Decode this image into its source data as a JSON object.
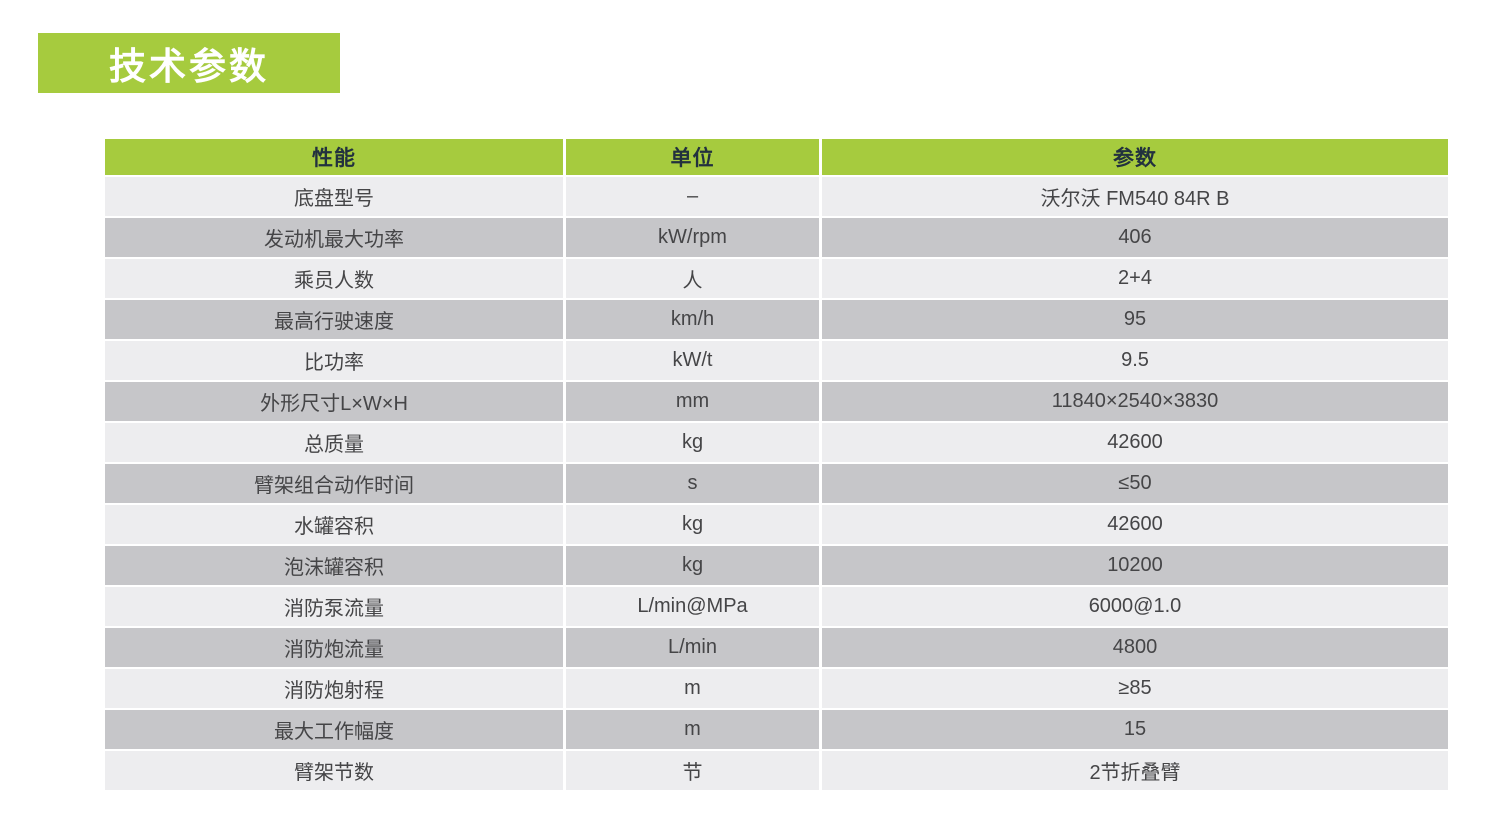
{
  "page": {
    "title": "技术参数"
  },
  "colors": {
    "accent_green": "#a6cb3e",
    "header_text": "#22313e",
    "row_light": "#ededef",
    "row_dark": "#c6c6c9",
    "cell_text": "#454547",
    "title_text": "#ffffff"
  },
  "table": {
    "headers": {
      "performance": "性能",
      "unit": "单位",
      "parameter": "参数"
    },
    "rows": [
      {
        "name": "底盘型号",
        "unit": "–",
        "value": "沃尔沃 FM540 84R B"
      },
      {
        "name": "发动机最大功率",
        "unit": "kW/rpm",
        "value": "406"
      },
      {
        "name": "乘员人数",
        "unit": "人",
        "value": "2+4"
      },
      {
        "name": "最高行驶速度",
        "unit": "km/h",
        "value": "95"
      },
      {
        "name": "比功率",
        "unit": "kW/t",
        "value": "9.5"
      },
      {
        "name": "外形尺寸L×W×H",
        "unit": "mm",
        "value": "11840×2540×3830"
      },
      {
        "name": "总质量",
        "unit": "kg",
        "value": "42600"
      },
      {
        "name": "臂架组合动作时间",
        "unit": "s",
        "value": "≤50"
      },
      {
        "name": "水罐容积",
        "unit": "kg",
        "value": "42600"
      },
      {
        "name": "泡沫罐容积",
        "unit": "kg",
        "value": "10200"
      },
      {
        "name": "消防泵流量",
        "unit": "L/min@MPa",
        "value": "6000@1.0"
      },
      {
        "name": "消防炮流量",
        "unit": "L/min",
        "value": "4800"
      },
      {
        "name": "消防炮射程",
        "unit": "m",
        "value": "≥85"
      },
      {
        "name": "最大工作幅度",
        "unit": "m",
        "value": "15"
      },
      {
        "name": "臂架节数",
        "unit": "节",
        "value": "2节折叠臂"
      }
    ]
  }
}
